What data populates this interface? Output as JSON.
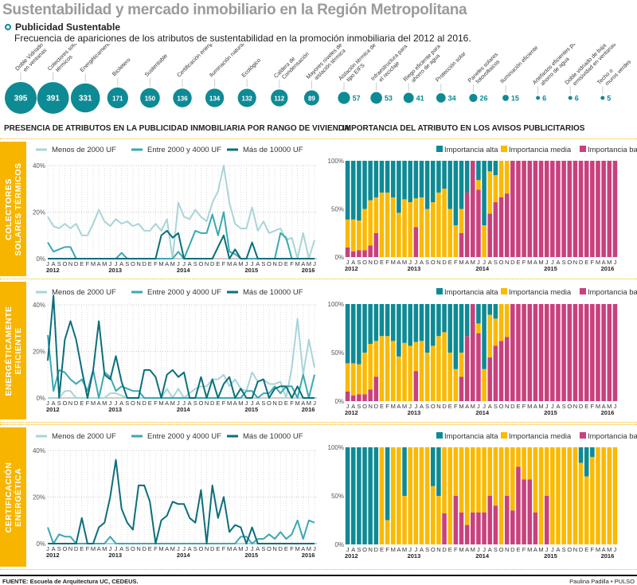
{
  "header": {
    "title": "Sustentabilidad y mercado inmobiliario en la Región Metropolitana",
    "subtitle": "Publicidad Sustentable",
    "description": "Frecuencia de apariciones de los atributos de sustentabilidad en la promoción inmobiliaria del 2012 al 2016."
  },
  "bubbles": [
    {
      "label": "Doble Vidriado en ventanas",
      "value": 395
    },
    {
      "label": "Colectores solares térmicos",
      "value": 391
    },
    {
      "label": "Energéticamente eficiente",
      "value": 331
    },
    {
      "label": "Biciletero",
      "value": 171
    },
    {
      "label": "Sustentable",
      "value": 150
    },
    {
      "label": "Certificación energética",
      "value": 136
    },
    {
      "label": "Iluminación natural",
      "value": 134
    },
    {
      "label": "Ecológico",
      "value": 132
    },
    {
      "label": "Caldera de Condensación",
      "value": 112
    },
    {
      "label": "Mayores niveles de aislación térmica",
      "value": 89
    },
    {
      "label": "Aislación térmica de tipo EIFS",
      "value": 57
    },
    {
      "label": "Infraestructura para el reciclaje",
      "value": 53
    },
    {
      "label": "Riego eficiente para ahorro de agua",
      "value": 41
    },
    {
      "label": "Protección solar",
      "value": 34
    },
    {
      "label": "Paneles solares fotovoltaicos",
      "value": 26
    },
    {
      "label": "Iluminación eficiente",
      "value": 15
    },
    {
      "label": "Artefactos eficientes para ahorro de agua",
      "value": 6
    },
    {
      "label": "Doble vidriado de baja emisividad en ventanas",
      "value": 6
    },
    {
      "label": "Techo o muros verdes",
      "value": 5
    }
  ],
  "sections": {
    "left_title": "PRESENCIA DE ATRIBUTOS EN LA PUBLICIDAD INMOBILIARIA POR RANGO DE VIVIENDA",
    "right_title": "IMPORTANCIA DEL ATRIBUTO EN LOS AVISOS PUBLICITARIOS"
  },
  "panels": [
    "COLECTORES|SOLARES TÉRMICOS",
    "ENERGÉTICAMENTE|EFICIENTE",
    "CERTIFICACIÓN|ENERGÉTICA"
  ],
  "time_axis": {
    "months": [
      "J",
      "A",
      "S",
      "O",
      "N",
      "D",
      "E",
      "F",
      "M",
      "A",
      "M",
      "J",
      "J",
      "A",
      "S",
      "O",
      "N",
      "D",
      "E",
      "F",
      "M",
      "A",
      "M",
      "J",
      "J",
      "A",
      "S",
      "O",
      "N",
      "D",
      "E",
      "F",
      "M",
      "A",
      "M",
      "J",
      "J",
      "A",
      "S",
      "O",
      "N",
      "D",
      "E",
      "F",
      "M",
      "A",
      "M",
      "J"
    ],
    "years": [
      "2012",
      "2013",
      "2014",
      "2015",
      "2016"
    ]
  },
  "colors": {
    "bubble": "#0e8a94",
    "light": "#a9d4d8",
    "mid": "#3aa9b1",
    "dark": "#0b6f7a",
    "alta": "#0e8a94",
    "media": "#fbb900",
    "baja": "#c9407d",
    "strip": "#f7b500"
  },
  "chart_data": [
    {
      "type": "line",
      "ylim": [
        0,
        40
      ],
      "yticks": [
        "0%",
        "20%",
        "40%"
      ],
      "legend": "top",
      "series": [
        {
          "name": "Menos de 2000 UF",
          "values": [
            18,
            14,
            13,
            15,
            13,
            15,
            10,
            10,
            15,
            21,
            16,
            14,
            17,
            15,
            16,
            14,
            15,
            12,
            12,
            15,
            12,
            17,
            0,
            24,
            18,
            17,
            21,
            18,
            16,
            24,
            29,
            40,
            24,
            15,
            13,
            13,
            22,
            12,
            16,
            11,
            12,
            13,
            8,
            9,
            0,
            11,
            0,
            8
          ]
        },
        {
          "name": "Entre 2000 y 4000 UF",
          "values": [
            7,
            3,
            4,
            5,
            5,
            0,
            0,
            0,
            0,
            0,
            0,
            0,
            0,
            2.5,
            0,
            0,
            0,
            0,
            0,
            0,
            0,
            0,
            0,
            3,
            0,
            6,
            12,
            11,
            11,
            19,
            10,
            20,
            3,
            2,
            0,
            0,
            0,
            0,
            0,
            0,
            0,
            11,
            9,
            0,
            0,
            0,
            0,
            0
          ]
        },
        {
          "name": "Más de 10000 UF",
          "values": [
            0,
            0,
            0,
            0,
            0,
            0,
            0,
            0,
            0,
            0,
            0,
            0,
            0,
            0,
            0,
            0,
            0,
            0,
            0,
            0,
            10,
            12,
            9,
            11,
            0,
            0,
            0,
            0,
            0,
            0,
            5,
            10,
            0,
            4,
            0,
            0,
            7,
            0,
            0,
            0,
            0,
            0,
            0,
            0,
            0,
            0,
            0,
            0
          ]
        }
      ]
    },
    {
      "type": "line",
      "ylim": [
        0,
        40
      ],
      "yticks": [
        "0%",
        "20%",
        "40%"
      ],
      "legend": "top",
      "series": [
        {
          "name": "Menos de 2000 UF",
          "values": [
            0,
            0,
            0,
            3,
            3,
            0,
            0,
            0,
            0,
            0,
            0,
            2,
            2,
            1,
            0,
            0,
            0,
            0,
            0,
            0,
            0,
            4,
            0,
            4,
            0,
            2,
            4,
            5,
            5,
            8,
            8,
            10,
            5,
            8,
            4,
            3,
            11,
            7,
            8,
            6,
            6,
            7,
            0,
            13,
            34,
            10,
            25,
            13
          ]
        },
        {
          "name": "Entre 2000 y 4000 UF",
          "values": [
            27,
            3,
            12,
            11,
            8,
            6,
            8,
            3,
            12,
            0,
            11,
            9,
            3,
            5,
            4,
            3,
            3,
            0,
            0,
            0,
            0,
            0,
            0,
            0,
            0,
            0,
            0,
            0,
            0,
            0,
            0,
            0,
            0,
            0,
            0,
            3,
            3,
            0,
            2,
            2,
            5,
            2,
            5,
            5,
            0,
            10,
            0,
            10
          ]
        },
        {
          "name": "Más de 10000 UF",
          "values": [
            16,
            48,
            0,
            25,
            33,
            25,
            12,
            0,
            12,
            33,
            10,
            8,
            18,
            7,
            0,
            0,
            0,
            12,
            12,
            9,
            0,
            10,
            12,
            9,
            11,
            0,
            0,
            9,
            0,
            8,
            0,
            6,
            9,
            0,
            4,
            0,
            0,
            7,
            8,
            0,
            4,
            5,
            5,
            0,
            5,
            0,
            0,
            0
          ]
        }
      ]
    },
    {
      "type": "line",
      "ylim": [
        0,
        40
      ],
      "yticks": [
        "0%",
        "20%",
        "40%"
      ],
      "legend": "top",
      "series": [
        {
          "name": "Menos de 2000 UF",
          "values": [
            0,
            0,
            0,
            0,
            0,
            0,
            0,
            0,
            0,
            0,
            0,
            0,
            0,
            0,
            0,
            0,
            0,
            0,
            0,
            0,
            0,
            0,
            0,
            0,
            0,
            0,
            0,
            0,
            0,
            0,
            0,
            0,
            0,
            0,
            0,
            0,
            0,
            0,
            0,
            0,
            0,
            0,
            0,
            0,
            0,
            0,
            0,
            0
          ]
        },
        {
          "name": "Entre 2000 y 4000 UF",
          "values": [
            7,
            0,
            4,
            3,
            3,
            0,
            0,
            0,
            0,
            0,
            0,
            3,
            0,
            0,
            0,
            0,
            0,
            0,
            0,
            0,
            0,
            0,
            0,
            0,
            0,
            0,
            0,
            0,
            0,
            0,
            0,
            0,
            0,
            0,
            3,
            3,
            0,
            2,
            2,
            4,
            2,
            5,
            2,
            4,
            10,
            2,
            10,
            9
          ]
        },
        {
          "name": "Más de 10000 UF",
          "values": [
            0,
            0,
            0,
            0,
            0,
            0,
            11,
            0,
            0,
            7,
            9,
            20,
            36,
            15,
            9,
            6,
            25,
            25,
            18,
            0,
            10,
            12,
            18,
            17,
            17,
            11,
            9,
            23,
            0,
            25,
            11,
            20,
            5,
            8,
            7,
            0,
            7,
            0,
            0,
            0,
            0,
            0,
            0,
            0,
            0,
            0,
            0,
            0
          ]
        }
      ]
    },
    {
      "type": "bar",
      "stacked": true,
      "ylim": [
        0,
        100
      ],
      "yticks": [
        "0%",
        "50%",
        "100%"
      ],
      "legend": "top-right",
      "series": [
        {
          "name": "Importancia alta",
          "values": [
            61,
            61,
            62,
            50,
            41,
            38,
            33,
            33,
            38,
            54,
            40,
            43,
            39,
            38,
            50,
            43,
            33,
            29,
            50,
            67,
            50,
            33,
            0,
            20,
            67,
            11,
            15,
            0,
            0,
            0,
            0,
            0,
            0,
            0,
            0,
            0,
            0,
            0,
            0,
            0,
            0,
            0,
            0,
            0,
            0,
            0,
            0,
            0
          ]
        },
        {
          "name": "Importancia media",
          "values": [
            29,
            33,
            31,
            43,
            47,
            37,
            67,
            67,
            62,
            46,
            60,
            57,
            30,
            62,
            50,
            57,
            67,
            71,
            50,
            33,
            25,
            0,
            0,
            10,
            33,
            44,
            28,
            38,
            34,
            0,
            0,
            0,
            0,
            0,
            0,
            0,
            0,
            0,
            0,
            0,
            0,
            0,
            0,
            0,
            0,
            0,
            0,
            0
          ]
        },
        {
          "name": "Importancia baja",
          "values": [
            10,
            6,
            7,
            7,
            12,
            25,
            0,
            0,
            0,
            0,
            0,
            0,
            31,
            0,
            0,
            0,
            0,
            0,
            0,
            0,
            25,
            67,
            100,
            70,
            0,
            45,
            57,
            62,
            66,
            100,
            100,
            100,
            100,
            100,
            100,
            100,
            100,
            100,
            100,
            100,
            100,
            100,
            100,
            100,
            100,
            100,
            100,
            100
          ]
        }
      ]
    },
    {
      "type": "bar",
      "stacked": true,
      "ylim": [
        0,
        100
      ],
      "yticks": [
        "0%",
        "50%",
        "100%"
      ],
      "legend": "top-right",
      "series": [
        {
          "name": "Importancia alta",
          "values": [
            61,
            61,
            62,
            50,
            41,
            38,
            33,
            33,
            38,
            54,
            40,
            43,
            39,
            38,
            50,
            43,
            33,
            29,
            50,
            67,
            50,
            33,
            0,
            20,
            67,
            11,
            15,
            0,
            0,
            0,
            0,
            0,
            0,
            0,
            0,
            0,
            0,
            0,
            0,
            0,
            0,
            0,
            0,
            0,
            0,
            0,
            0,
            0
          ]
        },
        {
          "name": "Importancia media",
          "values": [
            29,
            33,
            31,
            43,
            47,
            37,
            67,
            67,
            62,
            46,
            60,
            57,
            30,
            62,
            50,
            57,
            67,
            71,
            50,
            33,
            25,
            0,
            0,
            10,
            33,
            44,
            28,
            38,
            34,
            0,
            0,
            0,
            0,
            0,
            0,
            0,
            0,
            0,
            0,
            0,
            0,
            0,
            0,
            0,
            0,
            0,
            0,
            0
          ]
        },
        {
          "name": "Importancia baja",
          "values": [
            10,
            6,
            7,
            7,
            12,
            25,
            0,
            0,
            0,
            0,
            0,
            0,
            31,
            0,
            0,
            0,
            0,
            0,
            0,
            0,
            25,
            67,
            100,
            70,
            0,
            45,
            57,
            62,
            66,
            100,
            100,
            100,
            100,
            100,
            100,
            100,
            100,
            100,
            100,
            100,
            100,
            100,
            100,
            100,
            100,
            100,
            100,
            100
          ]
        }
      ]
    },
    {
      "type": "bar",
      "stacked": true,
      "ylim": [
        0,
        100
      ],
      "yticks": [
        "0%",
        "50%",
        "100%"
      ],
      "legend": "top-right",
      "series": [
        {
          "name": "Importancia alta",
          "values": [
            100,
            100,
            100,
            100,
            100,
            100,
            0,
            75,
            0,
            0,
            50,
            0,
            0,
            0,
            0,
            40,
            50,
            0,
            0,
            0,
            0,
            0,
            0,
            0,
            0,
            0,
            0,
            0,
            0,
            0,
            0,
            0,
            0,
            0,
            0,
            0,
            0,
            0,
            0,
            0,
            0,
            16,
            30,
            10,
            0,
            0,
            0,
            0
          ]
        },
        {
          "name": "Importancia media",
          "values": [
            0,
            0,
            0,
            0,
            0,
            0,
            100,
            25,
            100,
            100,
            50,
            100,
            100,
            100,
            100,
            60,
            50,
            68,
            100,
            50,
            67,
            80,
            67,
            67,
            67,
            50,
            60,
            100,
            50,
            65,
            20,
            33,
            33,
            67,
            100,
            50,
            100,
            100,
            100,
            100,
            100,
            84,
            70,
            90,
            100,
            100,
            100,
            100
          ]
        },
        {
          "name": "Importancia baja",
          "values": [
            0,
            0,
            0,
            0,
            0,
            0,
            0,
            0,
            0,
            0,
            0,
            0,
            0,
            0,
            0,
            0,
            0,
            32,
            0,
            50,
            33,
            20,
            33,
            33,
            33,
            50,
            40,
            0,
            50,
            35,
            80,
            67,
            67,
            33,
            0,
            50,
            0,
            0,
            0,
            0,
            0,
            0,
            0,
            0,
            0,
            0,
            0,
            0
          ]
        }
      ]
    }
  ],
  "footer": {
    "source": "FUENTE: Escuela de Arquitectura UC, CEDEUS.",
    "credit": "Paulina Padilla • PULSO"
  }
}
